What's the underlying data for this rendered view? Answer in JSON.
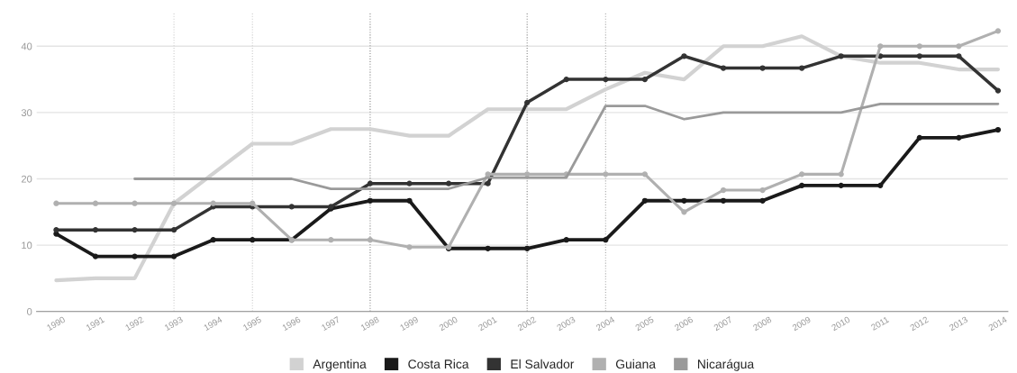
{
  "chart_data": {
    "type": "line",
    "categories": [
      "1990",
      "1991",
      "1992",
      "1993",
      "1994",
      "1995",
      "1996",
      "1997",
      "1998",
      "1999",
      "2000",
      "2001",
      "2002",
      "2003",
      "2004",
      "2005",
      "2006",
      "2007",
      "2008",
      "2009",
      "2010",
      "2011",
      "2012",
      "2013",
      "2014"
    ],
    "series": [
      {
        "name": "Argentina",
        "color": "#d2d2d2",
        "marker": "none",
        "values": [
          4.7,
          5,
          5,
          16.3,
          20.8,
          25.3,
          25.3,
          27.5,
          27.5,
          26.5,
          26.5,
          30.5,
          30.5,
          30.5,
          33.5,
          36,
          35,
          40,
          40,
          41.5,
          38.5,
          37.5,
          37.5,
          36.5,
          36.5
        ]
      },
      {
        "name": "Costa Rica",
        "color": "#1a1a1a",
        "marker": "circle",
        "values": [
          11.7,
          8.3,
          8.3,
          8.3,
          10.8,
          10.8,
          10.8,
          15.5,
          16.7,
          16.7,
          9.5,
          9.5,
          9.5,
          10.8,
          10.8,
          16.7,
          16.7,
          16.7,
          16.7,
          19,
          19,
          19,
          26.2,
          26.2,
          27.4
        ]
      },
      {
        "name": "El Salvador",
        "color": "#333333",
        "marker": "circle",
        "values": [
          12.3,
          12.3,
          12.3,
          12.3,
          15.8,
          15.8,
          15.8,
          15.8,
          19.3,
          19.3,
          19.3,
          19.3,
          31.5,
          35,
          35,
          35,
          38.5,
          36.7,
          36.7,
          36.7,
          38.5,
          38.5,
          38.5,
          38.5,
          33.3
        ]
      },
      {
        "name": "Guiana",
        "color": "#b0b0b0",
        "marker": "circle",
        "values": [
          16.3,
          16.3,
          16.3,
          16.3,
          16.3,
          16.3,
          10.8,
          10.8,
          10.8,
          9.7,
          9.7,
          20.7,
          20.7,
          20.7,
          20.7,
          20.7,
          15,
          18.3,
          18.3,
          20.7,
          20.7,
          40,
          40,
          40,
          42.3
        ]
      },
      {
        "name": "Nicarágua",
        "color": "#9a9a9a",
        "marker": "none",
        "values": [
          null,
          null,
          20,
          20,
          20,
          20,
          20,
          18.5,
          18.5,
          18.5,
          18.5,
          20.2,
          20.2,
          20.2,
          31,
          31,
          29,
          30,
          30,
          30,
          30,
          31.3,
          31.3,
          31.3,
          31.3
        ]
      }
    ],
    "ylim": [
      0,
      45
    ],
    "yticks": [
      0,
      10,
      20,
      30,
      40
    ],
    "grid": "y",
    "legend": "bottom",
    "ref_lines": [
      {
        "axis": "x",
        "value": "1993",
        "color": "#cccccc",
        "line_style": "dotted"
      },
      {
        "axis": "x",
        "value": "1995",
        "color": "#cccccc",
        "line_style": "dotted"
      },
      {
        "axis": "x",
        "value": "1998",
        "color": "#888888",
        "line_style": "dotted"
      },
      {
        "axis": "x",
        "value": "2002",
        "color": "#888888",
        "line_style": "dotted"
      },
      {
        "axis": "x",
        "value": "2004",
        "color": "#aaaaaa",
        "line_style": "dotted"
      }
    ]
  }
}
